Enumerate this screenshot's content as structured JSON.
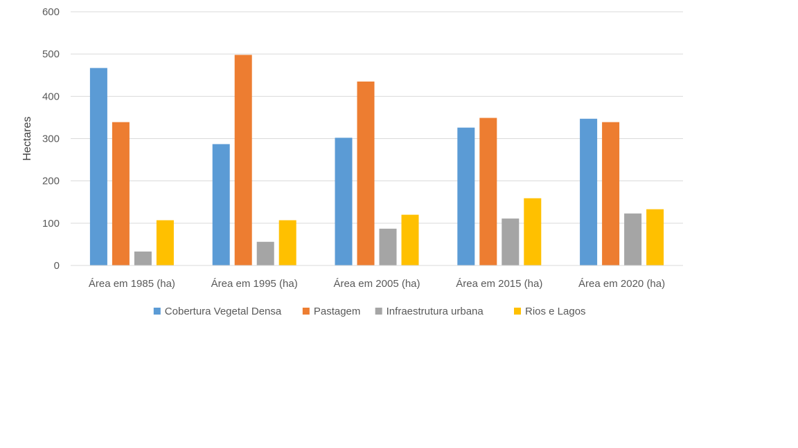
{
  "chart_data": {
    "type": "bar",
    "categories": [
      "Área em 1985 (ha)",
      "Área em 1995 (ha)",
      "Área em 2005 (ha)",
      "Área em 2015 (ha)",
      "Área em 2020 (ha)"
    ],
    "series": [
      {
        "name": "Cobertura Vegetal Densa",
        "color": "#5b9bd5",
        "values": [
          467,
          287,
          302,
          326,
          347
        ]
      },
      {
        "name": "Pastagem",
        "color": "#ed7d31",
        "values": [
          339,
          498,
          435,
          349,
          339
        ]
      },
      {
        "name": "Infraestrutura urbana",
        "color": "#a5a5a5",
        "values": [
          33,
          56,
          87,
          111,
          123
        ]
      },
      {
        "name": "Rios e Lagos",
        "color": "#ffc000",
        "values": [
          107,
          107,
          120,
          159,
          133
        ]
      }
    ],
    "title": "",
    "xlabel": "",
    "ylabel": "Hectares",
    "ylim": [
      0,
      600
    ],
    "yticks": [
      0,
      100,
      200,
      300,
      400,
      500,
      600
    ],
    "grid": true,
    "legend_position": "bottom"
  }
}
